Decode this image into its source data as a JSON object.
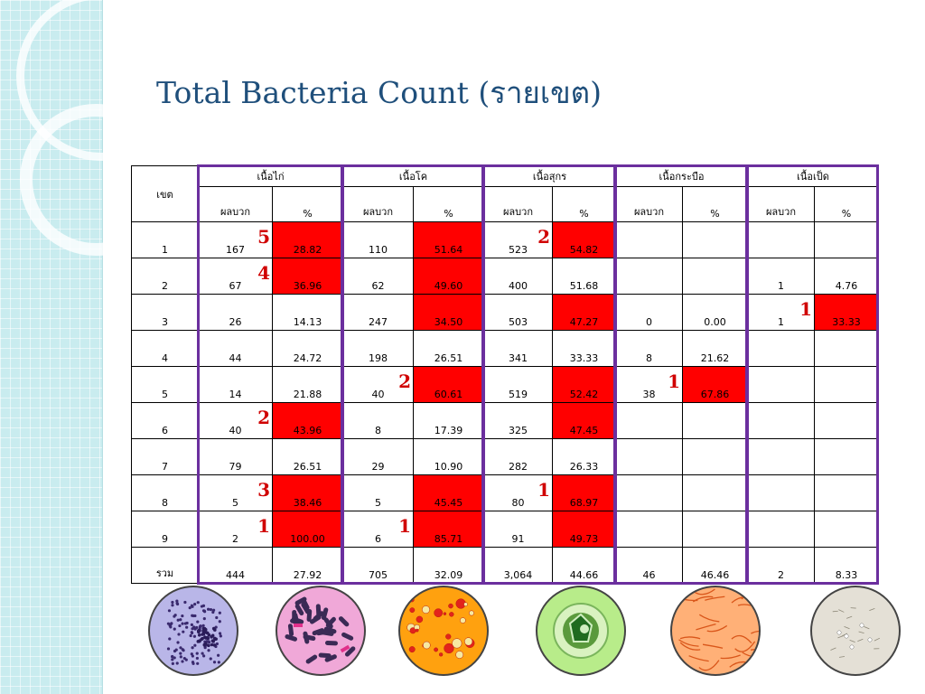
{
  "title": "Total Bacteria Count (รายเขต)",
  "table": {
    "zone_header": "เขต",
    "sub_positive": "ผลบวก",
    "sub_percent": "%",
    "groups": [
      "เนื้อไก่",
      "เนื้อโค",
      "เนื้อสุกร",
      "เนื้อกระบือ",
      "เนื้อเป็ด"
    ],
    "rows": [
      {
        "zone": "1",
        "cells": [
          {
            "pos": "167",
            "pct": "28.82",
            "red": true,
            "rank": "5"
          },
          {
            "pos": "110",
            "pct": "51.64",
            "red": true,
            "rank": ""
          },
          {
            "pos": "523",
            "pct": "54.82",
            "red": true,
            "rank": "2"
          },
          {
            "pos": "",
            "pct": "",
            "red": false,
            "rank": ""
          },
          {
            "pos": "",
            "pct": "",
            "red": false,
            "rank": ""
          }
        ]
      },
      {
        "zone": "2",
        "cells": [
          {
            "pos": "67",
            "pct": "36.96",
            "red": true,
            "rank": "4"
          },
          {
            "pos": "62",
            "pct": "49.60",
            "red": true,
            "rank": ""
          },
          {
            "pos": "400",
            "pct": "51.68",
            "red": false,
            "rank": ""
          },
          {
            "pos": "",
            "pct": "",
            "red": false,
            "rank": ""
          },
          {
            "pos": "1",
            "pct": "4.76",
            "red": false,
            "rank": ""
          }
        ]
      },
      {
        "zone": "3",
        "cells": [
          {
            "pos": "26",
            "pct": "14.13",
            "red": false,
            "rank": ""
          },
          {
            "pos": "247",
            "pct": "34.50",
            "red": true,
            "rank": ""
          },
          {
            "pos": "503",
            "pct": "47.27",
            "red": true,
            "rank": ""
          },
          {
            "pos": "0",
            "pct": "0.00",
            "red": false,
            "rank": ""
          },
          {
            "pos": "1",
            "pct": "33.33",
            "red": true,
            "rank": "1"
          }
        ]
      },
      {
        "zone": "4",
        "cells": [
          {
            "pos": "44",
            "pct": "24.72",
            "red": false,
            "rank": ""
          },
          {
            "pos": "198",
            "pct": "26.51",
            "red": false,
            "rank": ""
          },
          {
            "pos": "341",
            "pct": "33.33",
            "red": false,
            "rank": ""
          },
          {
            "pos": "8",
            "pct": "21.62",
            "red": false,
            "rank": ""
          },
          {
            "pos": "",
            "pct": "",
            "red": false,
            "rank": ""
          }
        ]
      },
      {
        "zone": "5",
        "cells": [
          {
            "pos": "14",
            "pct": "21.88",
            "red": false,
            "rank": ""
          },
          {
            "pos": "40",
            "pct": "60.61",
            "red": true,
            "rank": "2"
          },
          {
            "pos": "519",
            "pct": "52.42",
            "red": true,
            "rank": ""
          },
          {
            "pos": "38",
            "pct": "67.86",
            "red": true,
            "rank": "1"
          },
          {
            "pos": "",
            "pct": "",
            "red": false,
            "rank": ""
          }
        ]
      },
      {
        "zone": "6",
        "cells": [
          {
            "pos": "40",
            "pct": "43.96",
            "red": true,
            "rank": "2"
          },
          {
            "pos": "8",
            "pct": "17.39",
            "red": false,
            "rank": ""
          },
          {
            "pos": "325",
            "pct": "47.45",
            "red": true,
            "rank": ""
          },
          {
            "pos": "",
            "pct": "",
            "red": false,
            "rank": ""
          },
          {
            "pos": "",
            "pct": "",
            "red": false,
            "rank": ""
          }
        ]
      },
      {
        "zone": "7",
        "cells": [
          {
            "pos": "79",
            "pct": "26.51",
            "red": false,
            "rank": ""
          },
          {
            "pos": "29",
            "pct": "10.90",
            "red": false,
            "rank": ""
          },
          {
            "pos": "282",
            "pct": "26.33",
            "red": false,
            "rank": ""
          },
          {
            "pos": "",
            "pct": "",
            "red": false,
            "rank": ""
          },
          {
            "pos": "",
            "pct": "",
            "red": false,
            "rank": ""
          }
        ]
      },
      {
        "zone": "8",
        "cells": [
          {
            "pos": "5",
            "pct": "38.46",
            "red": true,
            "rank": "3"
          },
          {
            "pos": "5",
            "pct": "45.45",
            "red": true,
            "rank": ""
          },
          {
            "pos": "80",
            "pct": "68.97",
            "red": true,
            "rank": "1"
          },
          {
            "pos": "",
            "pct": "",
            "red": false,
            "rank": ""
          },
          {
            "pos": "",
            "pct": "",
            "red": false,
            "rank": ""
          }
        ]
      },
      {
        "zone": "9",
        "cells": [
          {
            "pos": "2",
            "pct": "100.00",
            "red": true,
            "rank": "1"
          },
          {
            "pos": "6",
            "pct": "85.71",
            "red": true,
            "rank": "1"
          },
          {
            "pos": "91",
            "pct": "49.73",
            "red": true,
            "rank": ""
          },
          {
            "pos": "",
            "pct": "",
            "red": false,
            "rank": ""
          },
          {
            "pos": "",
            "pct": "",
            "red": false,
            "rank": ""
          }
        ]
      },
      {
        "zone": "รวม",
        "cells": [
          {
            "pos": "444",
            "pct": "27.92",
            "red": false,
            "rank": ""
          },
          {
            "pos": "705",
            "pct": "32.09",
            "red": false,
            "rank": ""
          },
          {
            "pos": "3,064",
            "pct": "44.66",
            "red": false,
            "rank": ""
          },
          {
            "pos": "46",
            "pct": "46.46",
            "red": false,
            "rank": ""
          },
          {
            "pos": "2",
            "pct": "8.33",
            "red": false,
            "rank": ""
          }
        ]
      }
    ]
  },
  "colors": {
    "title": "#1f4f7b",
    "highlight": "#ff0000",
    "rank": "#d00000",
    "group_border": "#6b2f9e",
    "side_panel": "#c9ecef"
  },
  "images": [
    {
      "name": "micrograph-purple-cocci",
      "bg": "#b9b6e8"
    },
    {
      "name": "micrograph-pink-rods",
      "bg": "#f0a8d8"
    },
    {
      "name": "micrograph-orange-colonies",
      "bg": "#ffa10f"
    },
    {
      "name": "micrograph-green-cells",
      "bg": "#b8ec8a"
    },
    {
      "name": "micrograph-orange-filaments",
      "bg": "#ffb077"
    },
    {
      "name": "micrograph-gray-spores",
      "bg": "#e4e0d6"
    }
  ]
}
